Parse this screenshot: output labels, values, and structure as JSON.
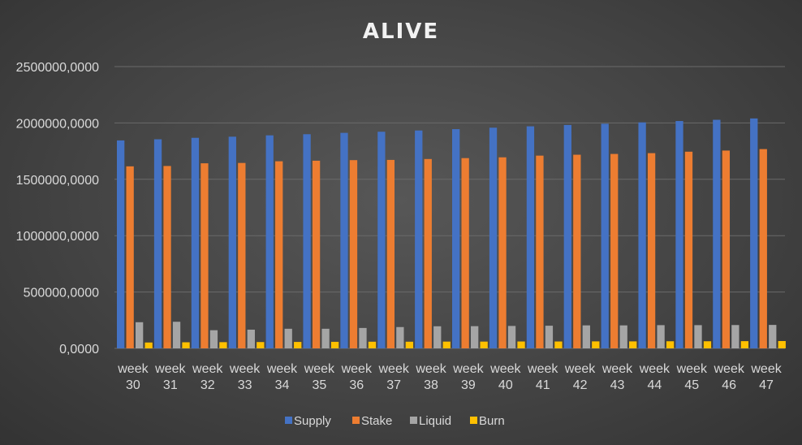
{
  "chart_data": {
    "type": "bar",
    "title": "ALIVE",
    "xlabel": "",
    "ylabel": "",
    "ylim": [
      0,
      2500000
    ],
    "yticks": [
      0,
      500000,
      1000000,
      1500000,
      2000000,
      2500000
    ],
    "ytick_labels": [
      "0,0000",
      "500000,0000",
      "1000000,0000",
      "1500000,0000",
      "2000000,0000",
      "2500000,0000"
    ],
    "grid": true,
    "legend_position": "bottom",
    "categories": [
      "week 30",
      "week 31",
      "week 32",
      "week 33",
      "week 34",
      "week 35",
      "week 36",
      "week 37",
      "week 38",
      "week 39",
      "week 40",
      "week 41",
      "week 42",
      "week 43",
      "week 44",
      "week 45",
      "week 46",
      "week 47"
    ],
    "series": [
      {
        "name": "Supply",
        "color": "#4472c4",
        "values": [
          1845000,
          1855000,
          1868000,
          1878000,
          1890000,
          1900000,
          1912000,
          1922000,
          1933000,
          1945000,
          1958000,
          1970000,
          1982000,
          1993000,
          2005000,
          2017000,
          2028000,
          2040000
        ]
      },
      {
        "name": "Stake",
        "color": "#ed7d31",
        "values": [
          1615000,
          1618000,
          1642000,
          1645000,
          1660000,
          1665000,
          1670000,
          1672000,
          1680000,
          1688000,
          1695000,
          1710000,
          1718000,
          1725000,
          1732000,
          1745000,
          1755000,
          1768000
        ]
      },
      {
        "name": "Liquid",
        "color": "#a5a5a5",
        "values": [
          232000,
          236000,
          161000,
          166000,
          174000,
          174000,
          181000,
          189000,
          196000,
          197000,
          199000,
          201000,
          204000,
          204000,
          206000,
          206000,
          207000,
          208000
        ]
      },
      {
        "name": "Burn",
        "color": "#ffc000",
        "values": [
          52000,
          54000,
          55000,
          56000,
          57000,
          58000,
          59000,
          59000,
          60000,
          60000,
          61000,
          61000,
          62000,
          62000,
          63000,
          63000,
          64000,
          65000
        ]
      }
    ]
  }
}
